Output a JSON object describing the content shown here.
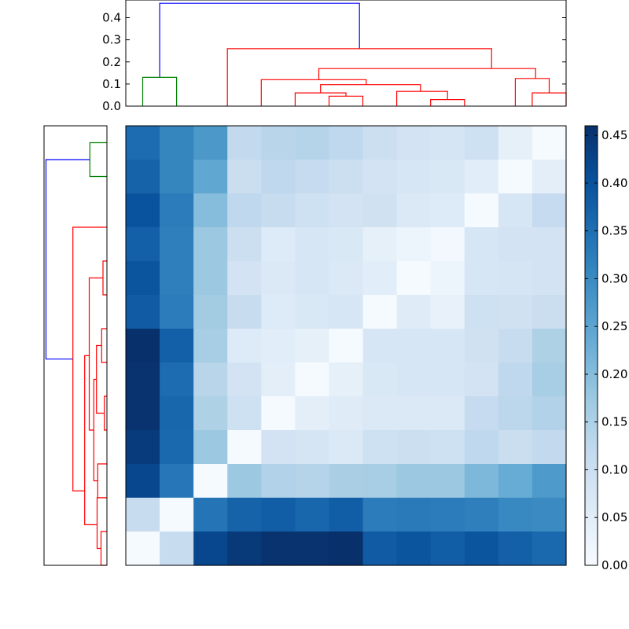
{
  "chart_data": [
    {
      "type": "heatmap",
      "title": "",
      "colormap": "Blues",
      "vmin": 0.0,
      "vmax": 0.46,
      "rows": 13,
      "cols": 13,
      "values": [
        [
          0.355,
          0.31,
          0.275,
          0.12,
          0.135,
          0.14,
          0.125,
          0.1,
          0.085,
          0.08,
          0.095,
          0.04,
          0.005
        ],
        [
          0.37,
          0.31,
          0.245,
          0.105,
          0.125,
          0.115,
          0.1,
          0.085,
          0.075,
          0.07,
          0.05,
          0.005,
          0.045
        ],
        [
          0.4,
          0.325,
          0.2,
          0.125,
          0.11,
          0.095,
          0.085,
          0.09,
          0.065,
          0.06,
          0.005,
          0.075,
          0.115
        ],
        [
          0.375,
          0.32,
          0.175,
          0.1,
          0.06,
          0.075,
          0.07,
          0.04,
          0.025,
          0.01,
          0.075,
          0.085,
          0.085
        ],
        [
          0.395,
          0.32,
          0.175,
          0.085,
          0.065,
          0.075,
          0.065,
          0.05,
          0.005,
          0.025,
          0.075,
          0.08,
          0.085
        ],
        [
          0.385,
          0.325,
          0.165,
          0.11,
          0.06,
          0.07,
          0.075,
          0.005,
          0.055,
          0.035,
          0.095,
          0.09,
          0.105
        ],
        [
          0.46,
          0.375,
          0.16,
          0.06,
          0.05,
          0.04,
          0.005,
          0.075,
          0.075,
          0.075,
          0.09,
          0.11,
          0.15
        ],
        [
          0.455,
          0.355,
          0.135,
          0.085,
          0.045,
          0.005,
          0.04,
          0.07,
          0.075,
          0.075,
          0.085,
          0.125,
          0.16
        ],
        [
          0.455,
          0.365,
          0.15,
          0.095,
          0.005,
          0.045,
          0.055,
          0.065,
          0.065,
          0.065,
          0.115,
          0.13,
          0.145
        ],
        [
          0.44,
          0.36,
          0.175,
          0.005,
          0.085,
          0.08,
          0.065,
          0.095,
          0.1,
          0.095,
          0.125,
          0.105,
          0.12
        ],
        [
          0.42,
          0.335,
          0.005,
          0.175,
          0.145,
          0.14,
          0.155,
          0.16,
          0.175,
          0.175,
          0.21,
          0.235,
          0.27
        ],
        [
          0.11,
          0.005,
          0.34,
          0.37,
          0.38,
          0.365,
          0.38,
          0.325,
          0.33,
          0.325,
          0.32,
          0.305,
          0.3
        ],
        [
          0.005,
          0.11,
          0.42,
          0.445,
          0.455,
          0.455,
          0.46,
          0.385,
          0.395,
          0.38,
          0.395,
          0.375,
          0.36
        ]
      ]
    },
    {
      "type": "dendrogram",
      "orientation": "top",
      "ylim": [
        0.0,
        0.48
      ],
      "yticks": [
        "0.0",
        "0.1",
        "0.2",
        "0.3",
        "0.4"
      ],
      "links": [
        {
          "color": "#0000ff",
          "xl": 0.5,
          "xr": 6.4,
          "h_left": 0.13,
          "h_right": 0.26,
          "h": 0.465
        },
        {
          "color": "#008000",
          "xl": 0.0,
          "xr": 1.0,
          "h_left": 0.0,
          "h_right": 0.0,
          "h": 0.13
        },
        {
          "color": "#ff0000",
          "xl": 2.5,
          "xr": 10.3,
          "h_left": 0.0,
          "h_right": 0.17,
          "h": 0.26
        },
        {
          "color": "#ff0000",
          "xl": 5.2,
          "xr": 11.6,
          "h_left": 0.12,
          "h_right": 0.125,
          "h": 0.17
        },
        {
          "color": "#ff0000",
          "xl": 3.5,
          "xr": 6.6,
          "h_left": 0.0,
          "h_right": 0.097,
          "h": 0.12
        },
        {
          "color": "#ff0000",
          "xl": 5.25,
          "xr": 8.2,
          "h_left": 0.06,
          "h_right": 0.067,
          "h": 0.097
        },
        {
          "color": "#ff0000",
          "xl": 4.5,
          "xr": 6.0,
          "h_left": 0.0,
          "h_right": 0.045,
          "h": 0.06
        },
        {
          "color": "#ff0000",
          "xl": 5.5,
          "xr": 6.5,
          "h_left": 0.0,
          "h_right": 0.0,
          "h": 0.045
        },
        {
          "color": "#ff0000",
          "xl": 7.5,
          "xr": 9.0,
          "h_left": 0.0,
          "h_right": 0.03,
          "h": 0.067
        },
        {
          "color": "#ff0000",
          "xl": 8.5,
          "xr": 9.5,
          "h_left": 0.0,
          "h_right": 0.0,
          "h": 0.03
        },
        {
          "color": "#ff0000",
          "xl": 11.0,
          "xr": 12.0,
          "h_left": 0.0,
          "h_right": 0.06,
          "h": 0.125
        },
        {
          "color": "#ff0000",
          "xl": 11.5,
          "xr": 12.5,
          "h_left": 0.0,
          "h_right": 0.0,
          "h": 0.06
        }
      ]
    },
    {
      "type": "dendrogram",
      "orientation": "left",
      "xlim": [
        0.0,
        0.48
      ],
      "links": [
        {
          "color": "#0000ff",
          "yl": 0.5,
          "yr": 6.4,
          "h_left": 0.13,
          "h_right": 0.26,
          "h": 0.465
        },
        {
          "color": "#008000",
          "yl": 0.0,
          "yr": 1.0,
          "h_left": 0.0,
          "h_right": 0.0,
          "h": 0.13
        },
        {
          "color": "#ff0000",
          "yl": 2.5,
          "yr": 10.3,
          "h_left": 0.0,
          "h_right": 0.17,
          "h": 0.26
        },
        {
          "color": "#ff0000",
          "yl": 6.3,
          "yr": 11.3,
          "h_left": 0.135,
          "h_right": 0.075,
          "h": 0.17
        },
        {
          "color": "#ff0000",
          "yl": 4.0,
          "yr": 8.5,
          "h_left": 0.03,
          "h_right": 0.1,
          "h": 0.135
        },
        {
          "color": "#ff0000",
          "yl": 3.5,
          "yr": 4.5,
          "h_left": 0.0,
          "h_right": 0.0,
          "h": 0.03
        },
        {
          "color": "#ff0000",
          "yl": 7.0,
          "yr": 10.0,
          "h_left": 0.08,
          "h_right": 0.07,
          "h": 0.1
        },
        {
          "color": "#ff0000",
          "yl": 6.0,
          "yr": 8.0,
          "h_left": 0.04,
          "h_right": 0.02,
          "h": 0.08
        },
        {
          "color": "#ff0000",
          "yl": 5.5,
          "yr": 6.5,
          "h_left": 0.0,
          "h_right": 0.0,
          "h": 0.04
        },
        {
          "color": "#ff0000",
          "yl": 7.5,
          "yr": 8.5,
          "h_left": 0.0,
          "h_right": 0.0,
          "h": 0.02
        },
        {
          "color": "#ff0000",
          "yl": 9.5,
          "yr": 10.5,
          "h_left": 0.0,
          "h_right": 0.0,
          "h": 0.07
        },
        {
          "color": "#ff0000",
          "yl": 10.5,
          "yr": 12.0,
          "h_left": 0.0,
          "h_right": 0.045,
          "h": 0.075
        },
        {
          "color": "#ff0000",
          "yl": 11.5,
          "yr": 12.5,
          "h_left": 0.0,
          "h_right": 0.0,
          "h": 0.045
        }
      ]
    },
    {
      "type": "colorbar",
      "vmin": 0.0,
      "vmax": 0.46,
      "ticks": [
        "0.00",
        "0.05",
        "0.10",
        "0.15",
        "0.20",
        "0.25",
        "0.30",
        "0.35",
        "0.40",
        "0.45"
      ],
      "tick_values": [
        0.0,
        0.05,
        0.1,
        0.15,
        0.2,
        0.25,
        0.3,
        0.35,
        0.4,
        0.45
      ]
    }
  ]
}
